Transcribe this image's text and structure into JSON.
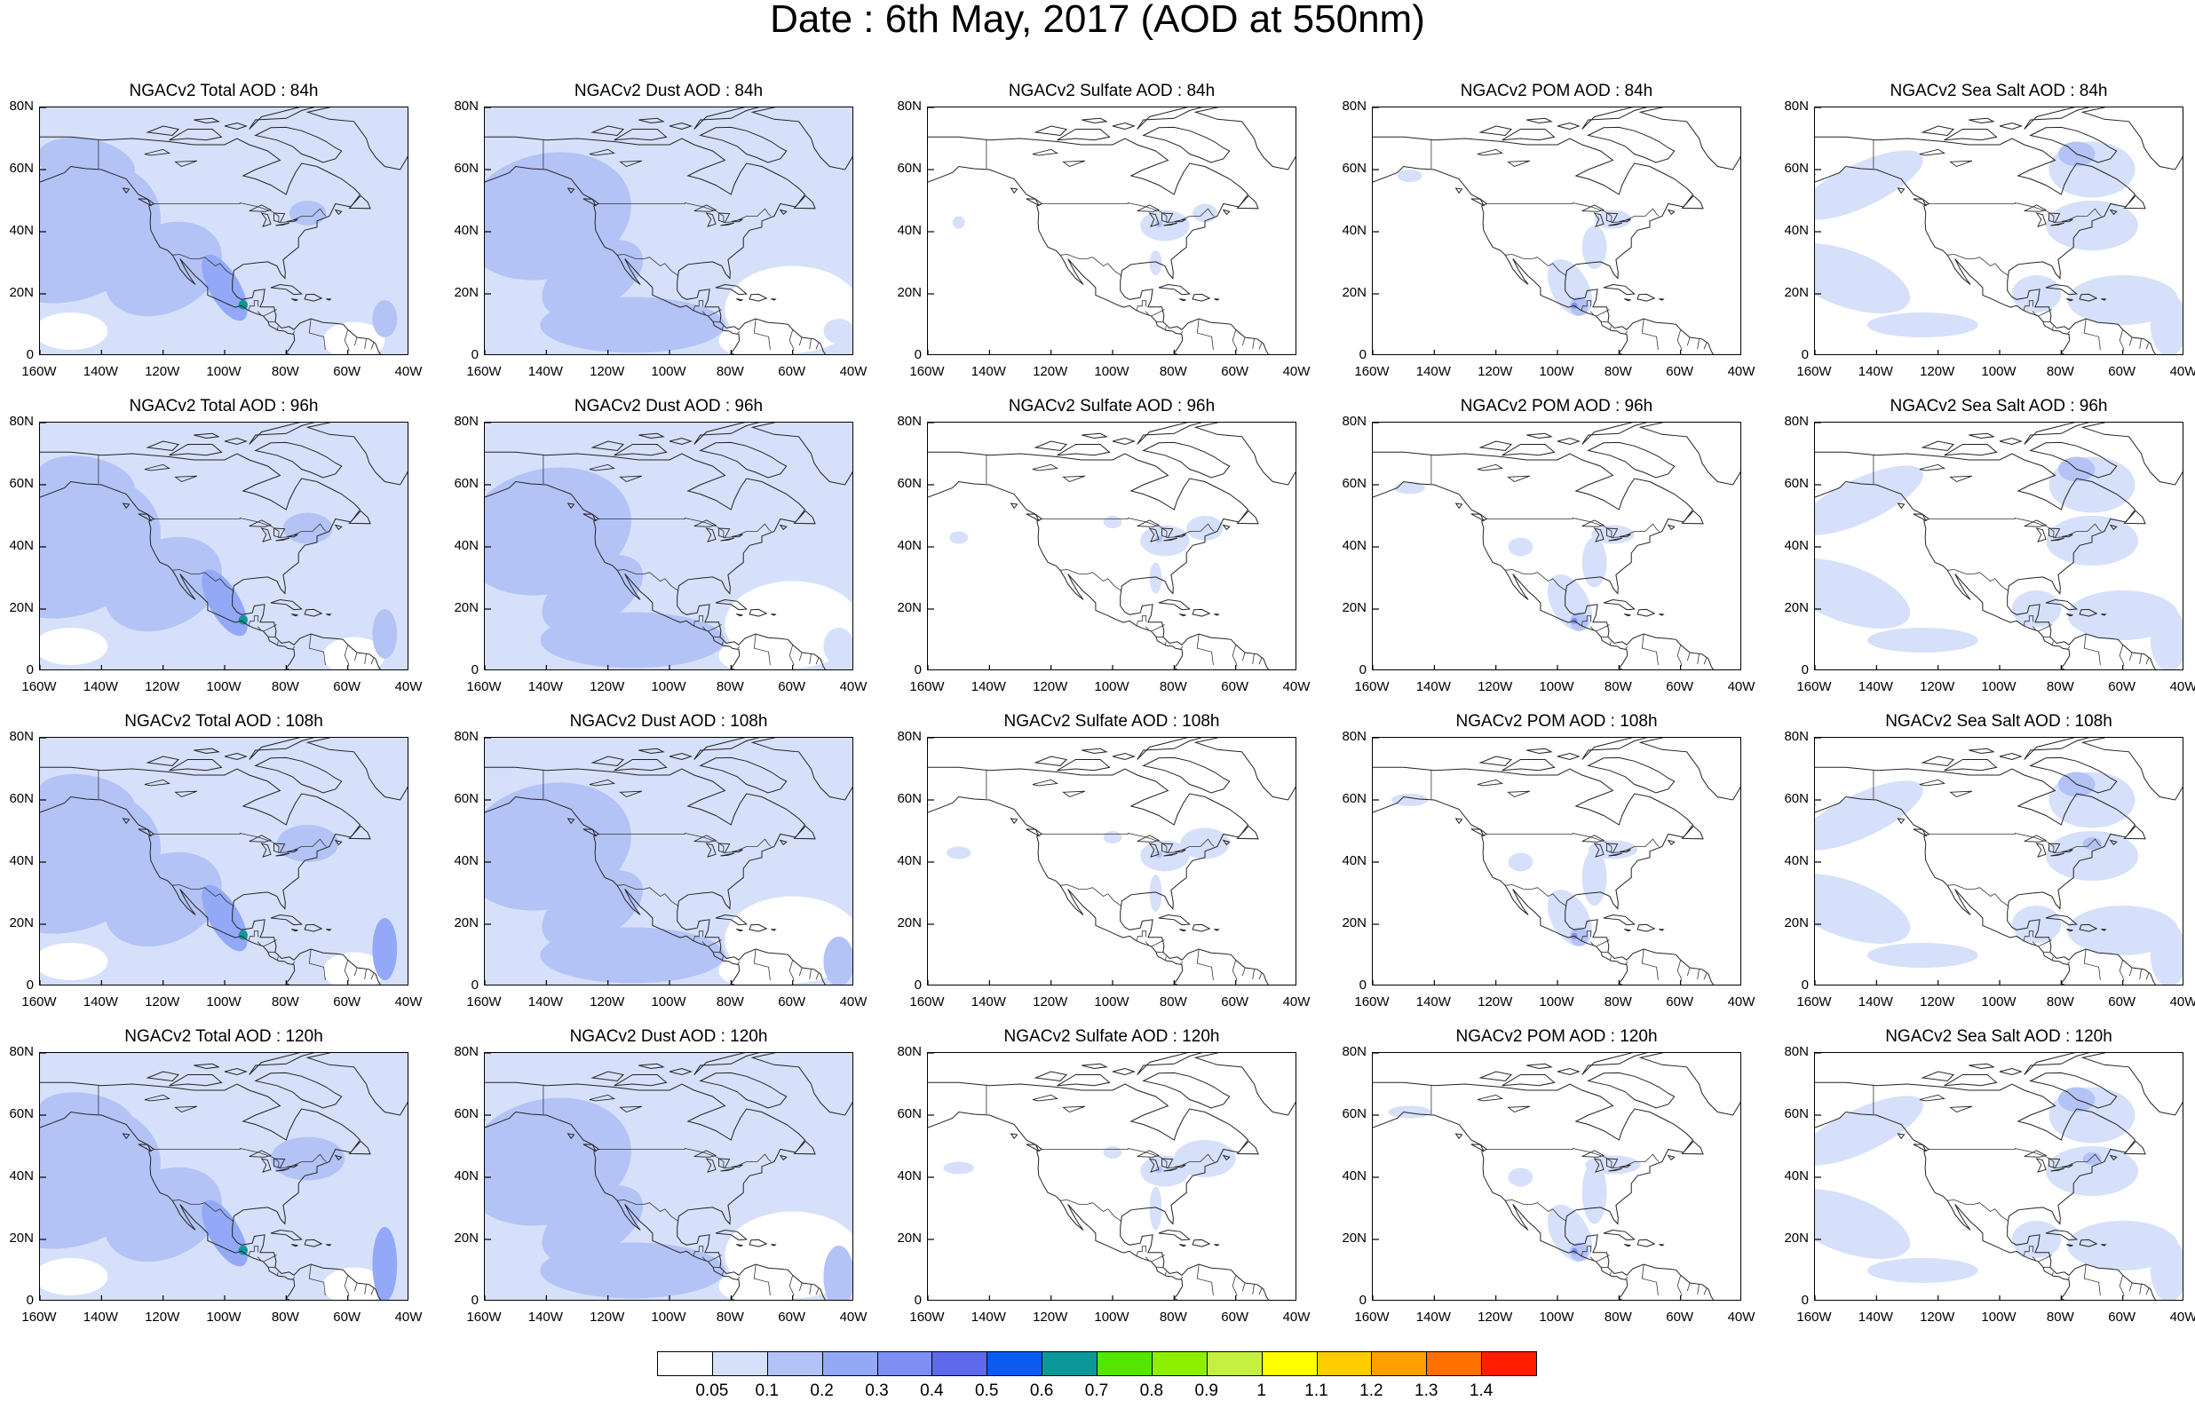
{
  "title": "Date : 6th May, 2017 (AOD at 550nm)",
  "axes": {
    "lon_ticks": [
      "160W",
      "140W",
      "120W",
      "100W",
      "80W",
      "60W",
      "40W"
    ],
    "lat_ticks": [
      "80N",
      "60N",
      "40N",
      "20N",
      "0"
    ],
    "lon_range": [
      -160,
      -40
    ],
    "lat_range": [
      0,
      80
    ]
  },
  "panels": [
    [
      {
        "title": "NGACv2 Total AOD : 84h",
        "field": "total"
      },
      {
        "title": "NGACv2 Dust AOD : 84h",
        "field": "dust"
      },
      {
        "title": "NGACv2 Sulfate AOD : 84h",
        "field": "sulfate"
      },
      {
        "title": "NGACv2 POM AOD : 84h",
        "field": "pom"
      },
      {
        "title": "NGACv2 Sea Salt AOD : 84h",
        "field": "seasalt"
      }
    ],
    [
      {
        "title": "NGACv2 Total AOD : 96h",
        "field": "total"
      },
      {
        "title": "NGACv2 Dust AOD : 96h",
        "field": "dust"
      },
      {
        "title": "NGACv2 Sulfate AOD : 96h",
        "field": "sulfate"
      },
      {
        "title": "NGACv2 POM AOD : 96h",
        "field": "pom"
      },
      {
        "title": "NGACv2 Sea Salt AOD : 96h",
        "field": "seasalt"
      }
    ],
    [
      {
        "title": "NGACv2 Total AOD : 108h",
        "field": "total"
      },
      {
        "title": "NGACv2 Dust AOD : 108h",
        "field": "dust"
      },
      {
        "title": "NGACv2 Sulfate AOD : 108h",
        "field": "sulfate"
      },
      {
        "title": "NGACv2 POM AOD : 108h",
        "field": "pom"
      },
      {
        "title": "NGACv2 Sea Salt AOD : 108h",
        "field": "seasalt"
      }
    ],
    [
      {
        "title": "NGACv2 Total AOD : 120h",
        "field": "total"
      },
      {
        "title": "NGACv2 Dust AOD : 120h",
        "field": "dust"
      },
      {
        "title": "NGACv2 Sulfate AOD : 120h",
        "field": "sulfate"
      },
      {
        "title": "NGACv2 POM AOD : 120h",
        "field": "pom"
      },
      {
        "title": "NGACv2 Sea Salt  AOD : 120h",
        "field": "seasalt"
      }
    ]
  ],
  "colorbar": {
    "labels": [
      "0.05",
      "0.1",
      "0.2",
      "0.3",
      "0.4",
      "0.5",
      "0.6",
      "0.7",
      "0.8",
      "0.9",
      "1",
      "1.1",
      "1.2",
      "1.3",
      "1.4"
    ],
    "colors": [
      "#ffffff",
      "#d6e0fa",
      "#b4c3f6",
      "#93a9f8",
      "#7f8ef5",
      "#5f69eb",
      "#0a5cf0",
      "#0b9898",
      "#52e600",
      "#8ef000",
      "#c4f040",
      "#ffff00",
      "#ffcc00",
      "#ffa000",
      "#ff7000",
      "#ff1e00"
    ]
  }
}
